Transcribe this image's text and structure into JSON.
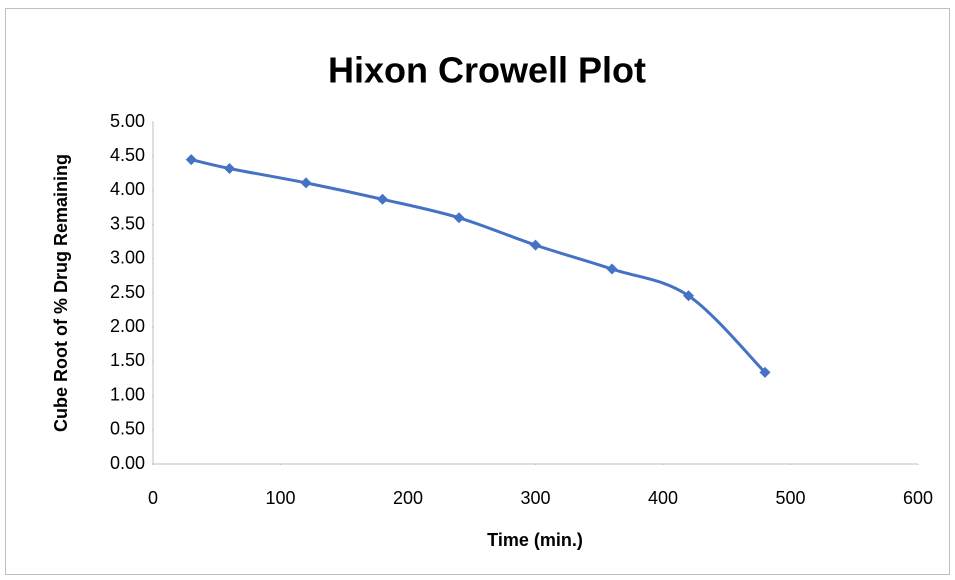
{
  "chart_data": {
    "type": "line",
    "title": "Hixon Crowell Plot",
    "x_label": "Time (min.)",
    "y_label": "Cube Root of % Drug Remaining",
    "x": [
      30,
      60,
      120,
      180,
      240,
      300,
      360,
      420,
      480
    ],
    "series": [
      {
        "name": "Cube Root of % Drug Remaining",
        "color": "#4472c4",
        "values": [
          4.45,
          4.32,
          4.11,
          3.87,
          3.6,
          3.2,
          2.85,
          2.46,
          1.34
        ]
      }
    ],
    "xlim": [
      0,
      600
    ],
    "xticks": [
      0,
      100,
      200,
      300,
      400,
      500,
      600
    ],
    "ylim": [
      0,
      5
    ],
    "yticks": [
      {
        "value": 0,
        "label": "0.00"
      },
      {
        "value": 0.5,
        "label": "0.50"
      },
      {
        "value": 1,
        "label": "1.00"
      },
      {
        "value": 1.5,
        "label": "1.50"
      },
      {
        "value": 2,
        "label": "2.00"
      },
      {
        "value": 2.5,
        "label": "2.50"
      },
      {
        "value": 3,
        "label": "3.00"
      },
      {
        "value": 3.5,
        "label": "3.50"
      },
      {
        "value": 4,
        "label": "4.00"
      },
      {
        "value": 4.5,
        "label": "4.50"
      },
      {
        "value": 5,
        "label": "5.00"
      }
    ],
    "grid": false,
    "smooth": true,
    "marker": "diamond"
  }
}
